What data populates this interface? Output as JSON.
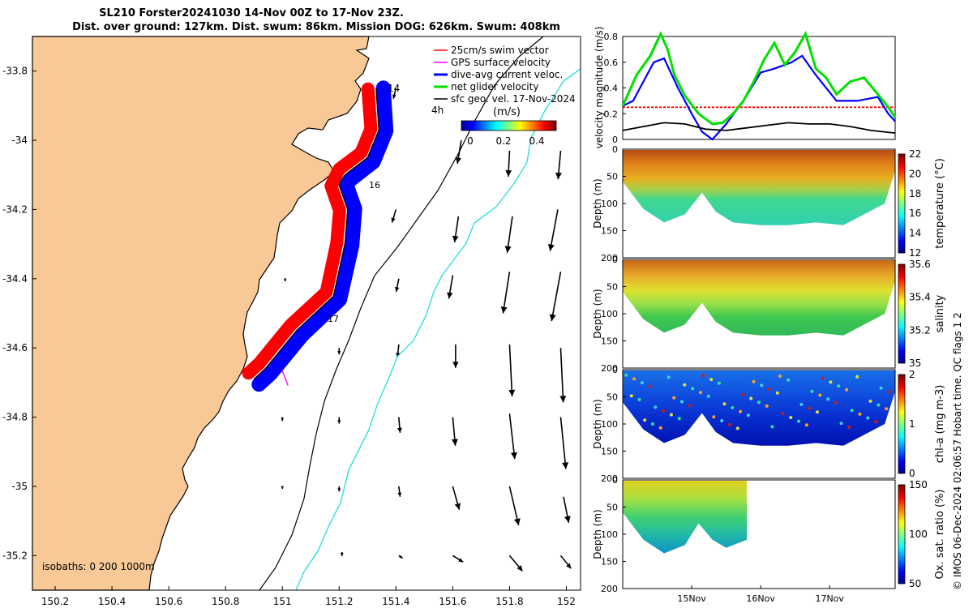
{
  "title_line1": "SL210 Forster20241030 14-Nov 00Z to 17-Nov 23Z.",
  "title_line2": "Dist. over ground: 127km. Dist. swum: 86km. Mission DOG: 626km. Swum: 408km",
  "credit": "© IMOS 06-Dec-2024 02:06:57 Hobart time. QC flags 1  2",
  "colors": {
    "land": "#f8c896",
    "track_red": "#ff0000",
    "track_blue": "#0000ff",
    "gps_arrow": "#ff00ff",
    "net_green": "#00e000",
    "isobath_cyan": "#33dddd"
  },
  "chart_data": [
    {
      "type": "map",
      "name": "track map",
      "xlim": [
        150.12,
        152.05
      ],
      "ylim": [
        -35.3,
        -33.7
      ],
      "xticks": [
        "150.2",
        "150.4",
        "150.6",
        "150.8",
        "151",
        "151.2",
        "151.4",
        "151.6",
        "151.8",
        "152"
      ],
      "yticks": [
        "-33.8",
        "-34",
        "-34.2",
        "-34.4",
        "-34.6",
        "-34.8",
        "-35",
        "-35.2"
      ],
      "legend": [
        {
          "label": "25cm/s swim vector",
          "color": "#ff0000"
        },
        {
          "label": "GPS surface velocity",
          "color": "#ff00ff"
        },
        {
          "label": "dive-avg current veloc.",
          "color": "#0000ff"
        },
        {
          "label": "net glider velocity",
          "color": "#00e000"
        },
        {
          "label": "sfc geo. vel. 17-Nov-2024",
          "color": "#000000"
        }
      ],
      "legend_extra": "4h",
      "colorbar_label": "(m/s)",
      "colorbar_ticks": [
        "0",
        "0.2",
        "0.4"
      ],
      "track_labels": [
        "14",
        "16",
        "17"
      ],
      "isobaths_label": "isobaths: 0   200  1000m",
      "track": [
        [
          151.33,
          -33.85
        ],
        [
          151.34,
          -33.97
        ],
        [
          151.3,
          -34.05
        ],
        [
          151.22,
          -34.1
        ],
        [
          151.2,
          -34.13
        ],
        [
          151.23,
          -34.2
        ],
        [
          151.22,
          -34.3
        ],
        [
          151.18,
          -34.45
        ],
        [
          151.05,
          -34.55
        ],
        [
          150.94,
          -34.66
        ],
        [
          150.9,
          -34.69
        ]
      ],
      "geo_vectors": [
        {
          "lon": 151.4,
          "lat": -33.85,
          "u": -0.02,
          "v": -0.08
        },
        {
          "lon": 151.63,
          "lat": -34.0,
          "u": -0.03,
          "v": -0.18
        },
        {
          "lon": 151.8,
          "lat": -34.03,
          "u": -0.01,
          "v": -0.2
        },
        {
          "lon": 151.98,
          "lat": -34.03,
          "u": -0.02,
          "v": -0.22
        },
        {
          "lon": 151.4,
          "lat": -34.2,
          "u": -0.03,
          "v": -0.1
        },
        {
          "lon": 151.62,
          "lat": -34.22,
          "u": -0.03,
          "v": -0.2
        },
        {
          "lon": 151.81,
          "lat": -34.22,
          "u": -0.04,
          "v": -0.28
        },
        {
          "lon": 151.97,
          "lat": -34.2,
          "u": -0.06,
          "v": -0.32
        },
        {
          "lon": 151.41,
          "lat": -34.4,
          "u": -0.02,
          "v": -0.1
        },
        {
          "lon": 151.6,
          "lat": -34.39,
          "u": -0.03,
          "v": -0.18
        },
        {
          "lon": 151.8,
          "lat": -34.38,
          "u": -0.05,
          "v": -0.32
        },
        {
          "lon": 151.98,
          "lat": -34.38,
          "u": -0.07,
          "v": -0.38
        },
        {
          "lon": 151.01,
          "lat": -34.4,
          "u": 0.0,
          "v": -0.02
        },
        {
          "lon": 151.0,
          "lat": -34.58,
          "u": 0.0,
          "v": -0.03
        },
        {
          "lon": 151.2,
          "lat": -34.6,
          "u": 0.0,
          "v": -0.05
        },
        {
          "lon": 151.41,
          "lat": -34.59,
          "u": -0.01,
          "v": -0.1
        },
        {
          "lon": 151.61,
          "lat": -34.59,
          "u": 0.0,
          "v": -0.18
        },
        {
          "lon": 151.8,
          "lat": -34.59,
          "u": 0.02,
          "v": -0.4
        },
        {
          "lon": 151.98,
          "lat": -34.6,
          "u": 0.02,
          "v": -0.42
        },
        {
          "lon": 151.0,
          "lat": -34.8,
          "u": 0.0,
          "v": -0.03
        },
        {
          "lon": 151.2,
          "lat": -34.8,
          "u": 0.0,
          "v": -0.05
        },
        {
          "lon": 151.41,
          "lat": -34.8,
          "u": 0.01,
          "v": -0.12
        },
        {
          "lon": 151.6,
          "lat": -34.8,
          "u": 0.02,
          "v": -0.22
        },
        {
          "lon": 151.8,
          "lat": -34.79,
          "u": 0.04,
          "v": -0.35
        },
        {
          "lon": 151.98,
          "lat": -34.8,
          "u": 0.04,
          "v": -0.4
        },
        {
          "lon": 151.0,
          "lat": -35.0,
          "u": 0.0,
          "v": -0.02
        },
        {
          "lon": 151.2,
          "lat": -35.0,
          "u": 0.0,
          "v": -0.04
        },
        {
          "lon": 151.41,
          "lat": -35.0,
          "u": 0.01,
          "v": -0.08
        },
        {
          "lon": 151.6,
          "lat": -35.0,
          "u": 0.05,
          "v": -0.18
        },
        {
          "lon": 151.8,
          "lat": -35.0,
          "u": 0.07,
          "v": -0.3
        },
        {
          "lon": 151.99,
          "lat": -35.03,
          "u": 0.04,
          "v": -0.2
        },
        {
          "lon": 151.21,
          "lat": -35.19,
          "u": 0.0,
          "v": -0.03
        },
        {
          "lon": 151.41,
          "lat": -35.2,
          "u": 0.03,
          "v": -0.02
        },
        {
          "lon": 151.6,
          "lat": -35.2,
          "u": 0.08,
          "v": -0.05
        },
        {
          "lon": 151.8,
          "lat": -35.2,
          "u": 0.1,
          "v": -0.12
        },
        {
          "lon": 151.98,
          "lat": -35.2,
          "u": 0.08,
          "v": -0.1
        }
      ]
    },
    {
      "type": "line",
      "name": "velocity magnitude",
      "ylabel": "velocity magnitude (m/s)",
      "ylim": [
        0,
        0.8
      ],
      "yticks": [
        "0",
        "0.2",
        "0.4",
        "0.6",
        "0.8"
      ],
      "series": [
        {
          "name": "swim threshold",
          "color": "#ff0000",
          "dashed": true,
          "x": [
            14.0,
            17.95
          ],
          "y": [
            0.25,
            0.25
          ]
        },
        {
          "name": "dive-avg current",
          "color": "#0000ff",
          "x": [
            14.0,
            14.15,
            14.3,
            14.45,
            14.6,
            14.8,
            15.0,
            15.15,
            15.3,
            15.5,
            15.75,
            16.0,
            16.2,
            16.45,
            16.6,
            16.8,
            17.1,
            17.4,
            17.7,
            17.85,
            17.95
          ],
          "y": [
            0.26,
            0.3,
            0.45,
            0.6,
            0.63,
            0.4,
            0.2,
            0.06,
            0.0,
            0.12,
            0.3,
            0.52,
            0.55,
            0.6,
            0.65,
            0.5,
            0.3,
            0.3,
            0.33,
            0.2,
            0.14
          ]
        },
        {
          "name": "net glider velocity",
          "color": "#00e000",
          "x": [
            14.0,
            14.2,
            14.4,
            14.55,
            14.65,
            14.75,
            14.9,
            15.1,
            15.3,
            15.45,
            15.6,
            15.75,
            15.9,
            16.05,
            16.2,
            16.35,
            16.5,
            16.65,
            16.8,
            16.95,
            17.1,
            17.3,
            17.5,
            17.7,
            17.85,
            17.95
          ],
          "y": [
            0.26,
            0.5,
            0.65,
            0.82,
            0.7,
            0.5,
            0.34,
            0.2,
            0.12,
            0.13,
            0.2,
            0.3,
            0.45,
            0.62,
            0.75,
            0.58,
            0.68,
            0.82,
            0.55,
            0.48,
            0.35,
            0.45,
            0.48,
            0.35,
            0.25,
            0.17
          ]
        },
        {
          "name": "sfc geo. vel.",
          "color": "#000000",
          "x": [
            14.0,
            14.3,
            14.6,
            14.9,
            15.2,
            15.5,
            15.8,
            16.1,
            16.4,
            16.7,
            17.0,
            17.3,
            17.6,
            17.95
          ],
          "y": [
            0.07,
            0.1,
            0.13,
            0.12,
            0.08,
            0.07,
            0.09,
            0.11,
            0.13,
            0.12,
            0.12,
            0.1,
            0.07,
            0.05
          ]
        }
      ]
    },
    {
      "type": "heatmap",
      "name": "temperature",
      "ylabel": "Depth (m)",
      "colorbar_label": "temperature (°C)",
      "colorbar_ticks": [
        "22",
        "20",
        "18",
        "16",
        "14",
        "12"
      ],
      "yticks": [
        "0",
        "50",
        "100",
        "150",
        "200"
      ],
      "max_depth_profile": {
        "x": [
          14.0,
          14.3,
          14.6,
          14.9,
          15.15,
          15.35,
          15.6,
          16.0,
          16.4,
          16.8,
          17.2,
          17.5,
          17.8,
          17.95
        ],
        "depth": [
          60,
          110,
          135,
          120,
          80,
          115,
          135,
          140,
          140,
          135,
          140,
          120,
          100,
          40
        ]
      }
    },
    {
      "type": "heatmap",
      "name": "salinity",
      "ylabel": "Depth (m)",
      "colorbar_label": "salinity",
      "colorbar_ticks": [
        "35.6",
        "35.4",
        "35.2",
        "35"
      ],
      "yticks": [
        "0",
        "50",
        "100",
        "150",
        "200"
      ],
      "max_depth_profile": {
        "x": [
          14.0,
          14.3,
          14.6,
          14.9,
          15.15,
          15.35,
          15.6,
          16.0,
          16.4,
          16.8,
          17.2,
          17.5,
          17.8,
          17.95
        ],
        "depth": [
          60,
          110,
          135,
          120,
          80,
          115,
          135,
          140,
          140,
          135,
          140,
          120,
          100,
          40
        ]
      }
    },
    {
      "type": "heatmap",
      "name": "chl-a",
      "ylabel": "Depth (m)",
      "colorbar_label": "chl-a (mg m-3)",
      "colorbar_ticks": [
        "2",
        "1",
        "0"
      ],
      "yticks": [
        "0",
        "50",
        "100",
        "150",
        "200"
      ],
      "max_depth_profile": {
        "x": [
          14.0,
          14.3,
          14.6,
          14.9,
          15.15,
          15.35,
          15.6,
          16.0,
          16.4,
          16.8,
          17.2,
          17.5,
          17.8,
          17.95
        ],
        "depth": [
          60,
          110,
          135,
          120,
          80,
          115,
          135,
          140,
          140,
          135,
          140,
          120,
          100,
          40
        ]
      }
    },
    {
      "type": "heatmap",
      "name": "oxygen saturation",
      "ylabel": "Depth (m)",
      "colorbar_label": "Ox. sat. ratio (%)",
      "colorbar_ticks": [
        "150",
        "100",
        "50"
      ],
      "yticks": [
        "0",
        "50",
        "100",
        "150",
        "200"
      ],
      "xticks": [
        "15Nov",
        "16Nov",
        "17Nov"
      ],
      "max_depth_profile": {
        "x": [
          14.0,
          14.3,
          14.6,
          14.9,
          15.1,
          15.3,
          15.5,
          15.8
        ],
        "depth": [
          60,
          110,
          135,
          120,
          80,
          110,
          125,
          110
        ]
      }
    }
  ]
}
